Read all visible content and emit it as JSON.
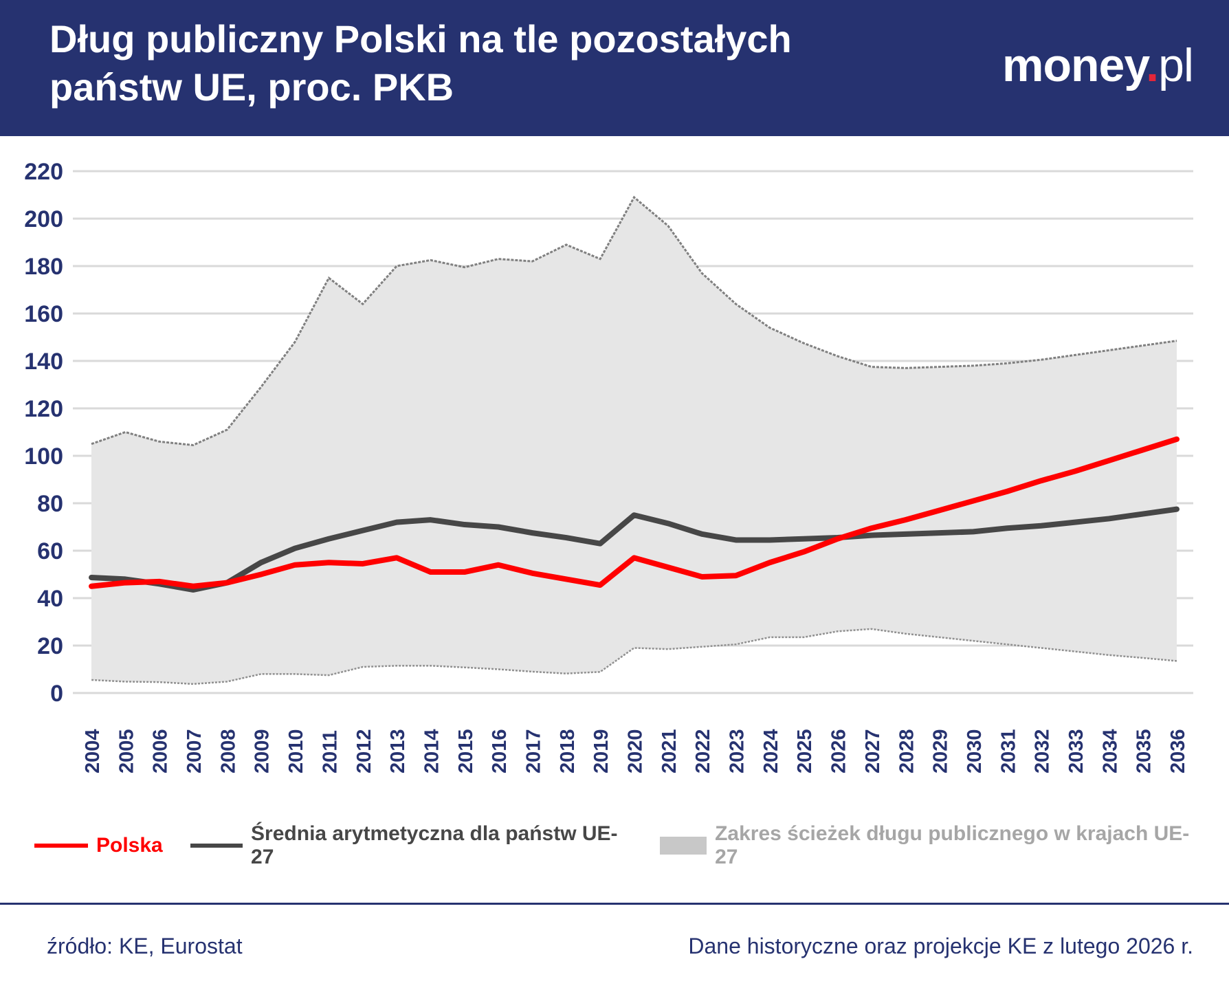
{
  "header": {
    "title_line1": "Dług publiczny Polski na tle pozostałych",
    "title_line2": "państw UE, proc. PKB",
    "logo_main": "money",
    "logo_dot": ".",
    "logo_suffix": "pl"
  },
  "chart_data": {
    "type": "line",
    "title": "Dług publiczny Polski na tle pozostałych państw UE, proc. PKB",
    "ylim": [
      0,
      220
    ],
    "yticks": [
      0,
      20,
      40,
      60,
      80,
      100,
      120,
      140,
      160,
      180,
      200,
      220
    ],
    "grid": true,
    "legend_placement": "bottom",
    "x": [
      2004,
      2005,
      2006,
      2007,
      2008,
      2009,
      2010,
      2011,
      2012,
      2013,
      2014,
      2015,
      2016,
      2017,
      2018,
      2019,
      2020,
      2021,
      2022,
      2023,
      2024,
      2025,
      2026,
      2027,
      2028,
      2029,
      2030,
      2031,
      2032,
      2033,
      2034,
      2035,
      2036
    ],
    "series": [
      {
        "name": "Polska",
        "color": "#ff0000",
        "values": [
          45,
          46.5,
          47,
          45,
          46.5,
          50,
          54,
          55,
          54.5,
          57,
          51,
          51,
          54,
          50.5,
          48,
          45.5,
          57,
          53,
          49,
          49.5,
          55,
          59.5,
          65,
          69.5,
          73,
          77,
          81,
          85,
          89.5,
          93.5,
          98,
          102.5,
          107
        ]
      },
      {
        "name": "Średnia arytmetyczna dla państw UE-27",
        "color": "#474747",
        "values": [
          48.7,
          48,
          46,
          43.5,
          46.5,
          55,
          61,
          65,
          68.5,
          72,
          73,
          71,
          70,
          67.5,
          65.5,
          63,
          75,
          71.5,
          67,
          64.5,
          64.5,
          65,
          65.5,
          66.5,
          67,
          67.5,
          68,
          69.5,
          70.5,
          72,
          73.5,
          75.5,
          77.5
        ]
      },
      {
        "name": "Zakres ścieżek długu publicznego w krajach UE-27",
        "color": "#c8c8c8",
        "type": "range",
        "upper": [
          105,
          110,
          106,
          104.5,
          111,
          129,
          148,
          175,
          164,
          180,
          182.5,
          179.5,
          183,
          182,
          189,
          183,
          209,
          197,
          177,
          164,
          154,
          147.5,
          142,
          137.5,
          137,
          137.5,
          138,
          139,
          140.5,
          142.5,
          144.5,
          146.5,
          148.5
        ],
        "lower": [
          5.5,
          4.8,
          4.6,
          3.8,
          4.8,
          8,
          8,
          7.5,
          11,
          11.5,
          11.5,
          10.8,
          10,
          9,
          8.2,
          8.9,
          19,
          18.5,
          19.5,
          20.5,
          23.5,
          23.5,
          26,
          27,
          25,
          23.5,
          22,
          20.5,
          19,
          17.5,
          16,
          14.8,
          13.5
        ]
      }
    ]
  },
  "legend": {
    "polska": "Polska",
    "srednia": "Średnia arytmetyczna dla państw UE-27",
    "zakres": "Zakres ścieżek długu publicznego w krajach UE-27"
  },
  "footer": {
    "source": "źródło: KE, Eurostat",
    "note": "Dane historyczne oraz projekcje KE z lutego 2026 r."
  }
}
